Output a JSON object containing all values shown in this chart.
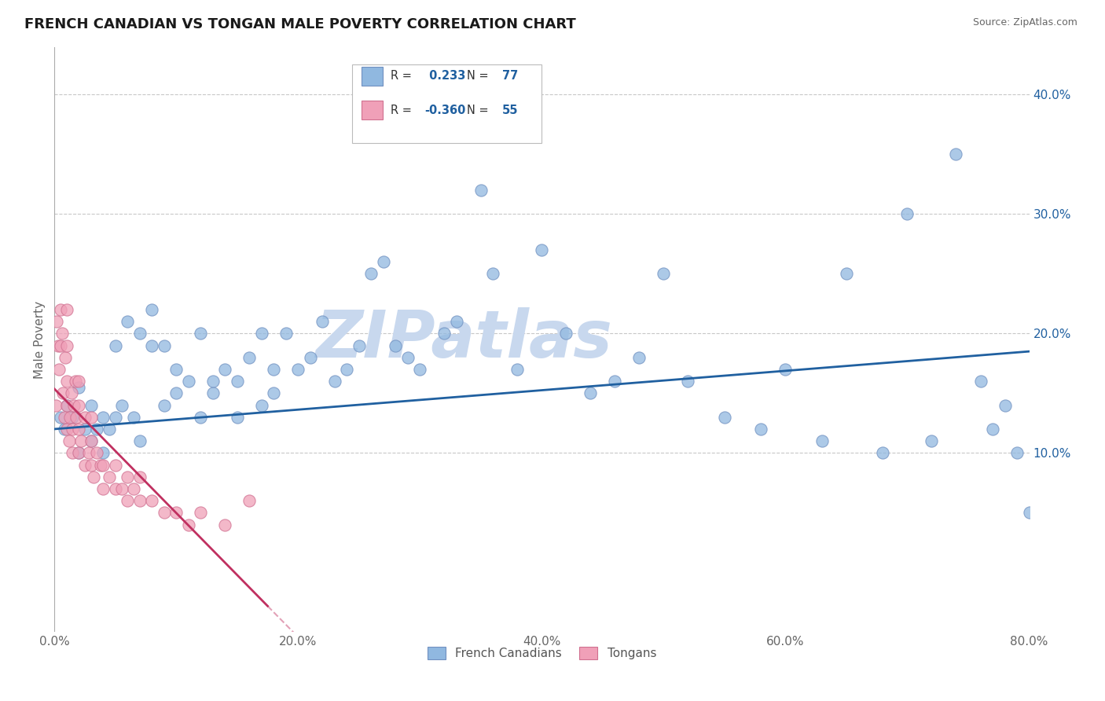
{
  "title": "FRENCH CANADIAN VS TONGAN MALE POVERTY CORRELATION CHART",
  "source": "Source: ZipAtlas.com",
  "ylabel": "Male Poverty",
  "xlim": [
    0.0,
    0.8
  ],
  "ylim": [
    -0.05,
    0.44
  ],
  "xtick_labels": [
    "0.0%",
    "",
    "20.0%",
    "",
    "40.0%",
    "",
    "60.0%",
    "",
    "80.0%"
  ],
  "xtick_vals": [
    0.0,
    0.1,
    0.2,
    0.3,
    0.4,
    0.5,
    0.6,
    0.7,
    0.8
  ],
  "ytick_labels": [
    "10.0%",
    "20.0%",
    "30.0%",
    "40.0%"
  ],
  "ytick_vals": [
    0.1,
    0.2,
    0.3,
    0.4
  ],
  "grid_color": "#c8c8c8",
  "background_color": "#ffffff",
  "blue_color": "#90b8e0",
  "blue_edge": "#7090c0",
  "blue_line": "#2060a0",
  "pink_color": "#f0a0b8",
  "pink_edge": "#d07090",
  "pink_line": "#c03060",
  "blue_R": 0.233,
  "blue_N": 77,
  "pink_R": -0.36,
  "pink_N": 55,
  "watermark": "ZIPatlas",
  "watermark_color": "#c8d8ee",
  "legend_R_N_color": "#2060a0",
  "blue_x": [
    0.005,
    0.008,
    0.01,
    0.015,
    0.02,
    0.02,
    0.025,
    0.03,
    0.03,
    0.035,
    0.04,
    0.04,
    0.045,
    0.05,
    0.05,
    0.055,
    0.06,
    0.065,
    0.07,
    0.07,
    0.08,
    0.08,
    0.09,
    0.09,
    0.1,
    0.1,
    0.11,
    0.12,
    0.12,
    0.13,
    0.13,
    0.14,
    0.15,
    0.15,
    0.16,
    0.17,
    0.17,
    0.18,
    0.18,
    0.19,
    0.2,
    0.21,
    0.22,
    0.23,
    0.24,
    0.25,
    0.26,
    0.27,
    0.28,
    0.29,
    0.3,
    0.32,
    0.33,
    0.35,
    0.36,
    0.38,
    0.4,
    0.42,
    0.44,
    0.46,
    0.48,
    0.5,
    0.52,
    0.55,
    0.58,
    0.6,
    0.63,
    0.65,
    0.68,
    0.7,
    0.72,
    0.74,
    0.76,
    0.77,
    0.78,
    0.79,
    0.8
  ],
  "blue_y": [
    0.13,
    0.12,
    0.14,
    0.13,
    0.1,
    0.155,
    0.12,
    0.11,
    0.14,
    0.12,
    0.1,
    0.13,
    0.12,
    0.19,
    0.13,
    0.14,
    0.21,
    0.13,
    0.11,
    0.2,
    0.19,
    0.22,
    0.14,
    0.19,
    0.15,
    0.17,
    0.16,
    0.13,
    0.2,
    0.15,
    0.16,
    0.17,
    0.13,
    0.16,
    0.18,
    0.14,
    0.2,
    0.15,
    0.17,
    0.2,
    0.17,
    0.18,
    0.21,
    0.16,
    0.17,
    0.19,
    0.25,
    0.26,
    0.19,
    0.18,
    0.17,
    0.2,
    0.21,
    0.32,
    0.25,
    0.17,
    0.27,
    0.2,
    0.15,
    0.16,
    0.18,
    0.25,
    0.16,
    0.13,
    0.12,
    0.17,
    0.11,
    0.25,
    0.1,
    0.3,
    0.11,
    0.35,
    0.16,
    0.12,
    0.14,
    0.1,
    0.05
  ],
  "pink_x": [
    0.001,
    0.002,
    0.003,
    0.004,
    0.005,
    0.005,
    0.006,
    0.007,
    0.008,
    0.009,
    0.01,
    0.01,
    0.01,
    0.01,
    0.01,
    0.012,
    0.013,
    0.014,
    0.015,
    0.015,
    0.016,
    0.017,
    0.018,
    0.02,
    0.02,
    0.02,
    0.02,
    0.022,
    0.025,
    0.025,
    0.028,
    0.03,
    0.03,
    0.03,
    0.032,
    0.035,
    0.038,
    0.04,
    0.04,
    0.045,
    0.05,
    0.05,
    0.055,
    0.06,
    0.06,
    0.065,
    0.07,
    0.07,
    0.08,
    0.09,
    0.1,
    0.11,
    0.12,
    0.14,
    0.16
  ],
  "pink_y": [
    0.14,
    0.21,
    0.19,
    0.17,
    0.19,
    0.22,
    0.2,
    0.15,
    0.13,
    0.18,
    0.12,
    0.14,
    0.16,
    0.19,
    0.22,
    0.11,
    0.13,
    0.15,
    0.1,
    0.12,
    0.14,
    0.16,
    0.13,
    0.1,
    0.12,
    0.14,
    0.16,
    0.11,
    0.09,
    0.13,
    0.1,
    0.09,
    0.11,
    0.13,
    0.08,
    0.1,
    0.09,
    0.07,
    0.09,
    0.08,
    0.07,
    0.09,
    0.07,
    0.06,
    0.08,
    0.07,
    0.06,
    0.08,
    0.06,
    0.05,
    0.05,
    0.04,
    0.05,
    0.04,
    0.06
  ]
}
